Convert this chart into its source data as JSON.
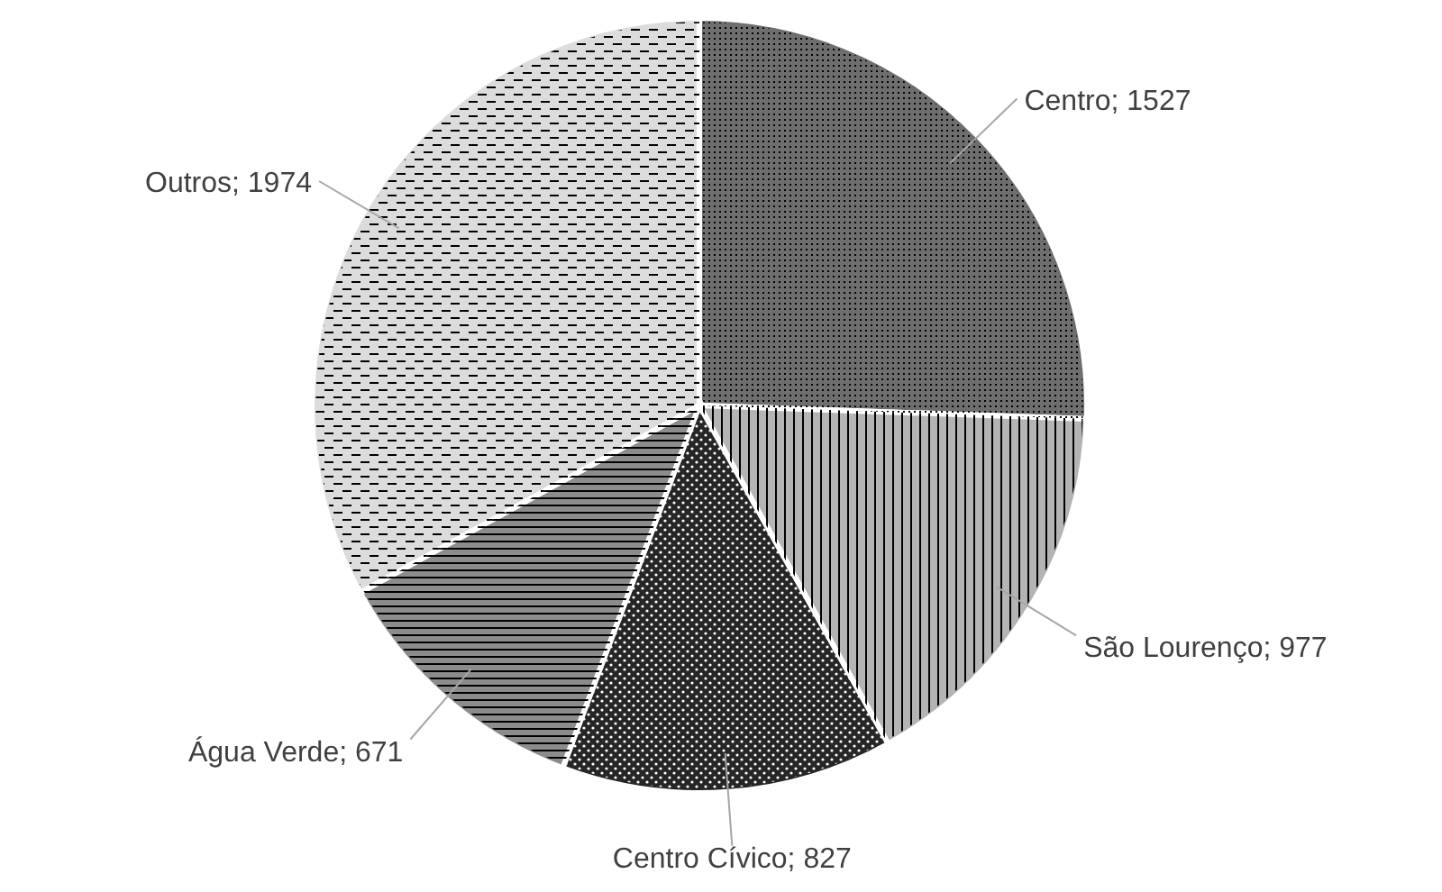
{
  "chart_data": {
    "type": "pie",
    "categories": [
      "Centro",
      "São Lourenço",
      "Centro Cívico",
      "Água Verde",
      "Outros"
    ],
    "values": [
      1527,
      977,
      827,
      671,
      1974
    ],
    "value_labels": [
      "; 1527",
      "; 977",
      "; 827",
      "; 671",
      "; 1974"
    ],
    "colors": [
      "#6e6e6e",
      "#b4b4b4",
      "#262626",
      "#8c8c8c",
      "#dcdcdc"
    ],
    "legend": false
  }
}
